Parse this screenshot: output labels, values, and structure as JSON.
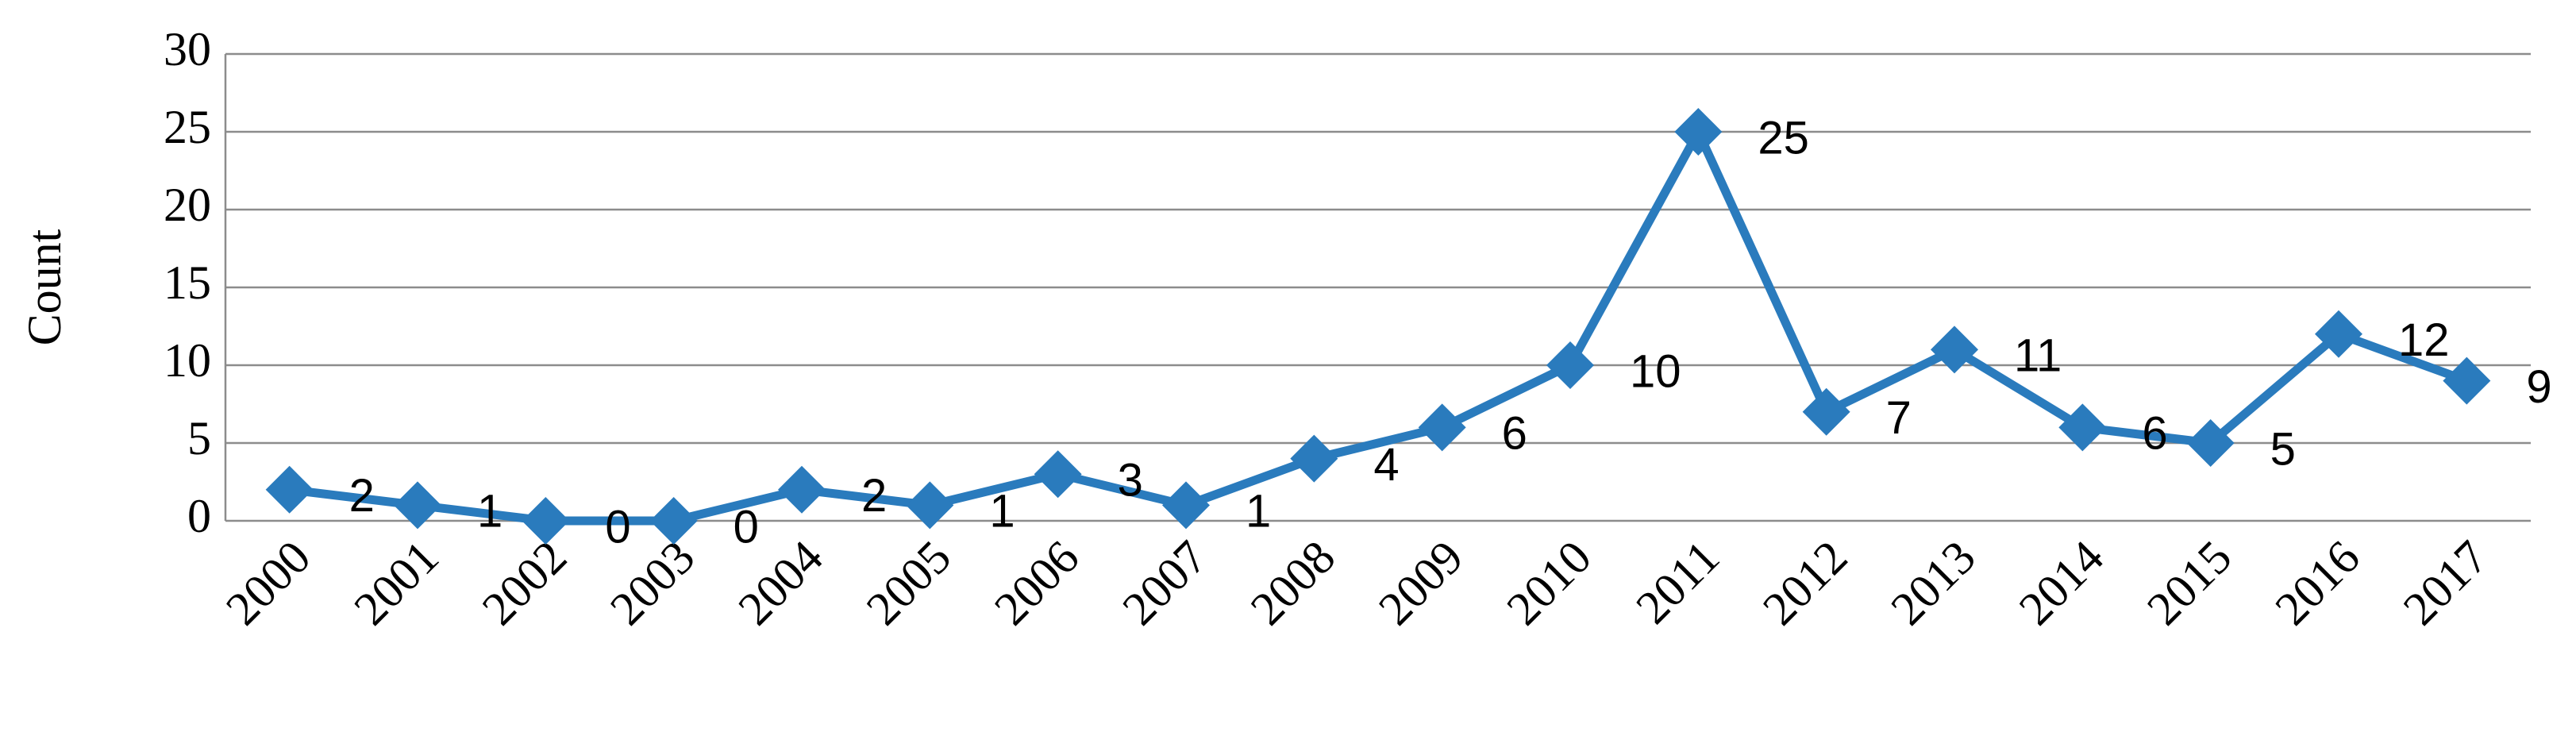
{
  "chart_data": {
    "type": "line",
    "y_label": "Count",
    "categories": [
      "2000",
      "2001",
      "2002",
      "2003",
      "2004",
      "2005",
      "2006",
      "2007",
      "2008",
      "2009",
      "2010",
      "2011",
      "2012",
      "2013",
      "2014",
      "2015",
      "2016",
      "2017"
    ],
    "values": [
      2,
      1,
      0,
      0,
      2,
      1,
      3,
      1,
      4,
      6,
      10,
      25,
      7,
      11,
      6,
      5,
      12,
      9
    ],
    "color": "#2a7bbd",
    "ylim": [
      0,
      30
    ],
    "yticks": [
      0,
      5,
      10,
      15,
      20,
      25,
      30
    ],
    "grid": true
  }
}
